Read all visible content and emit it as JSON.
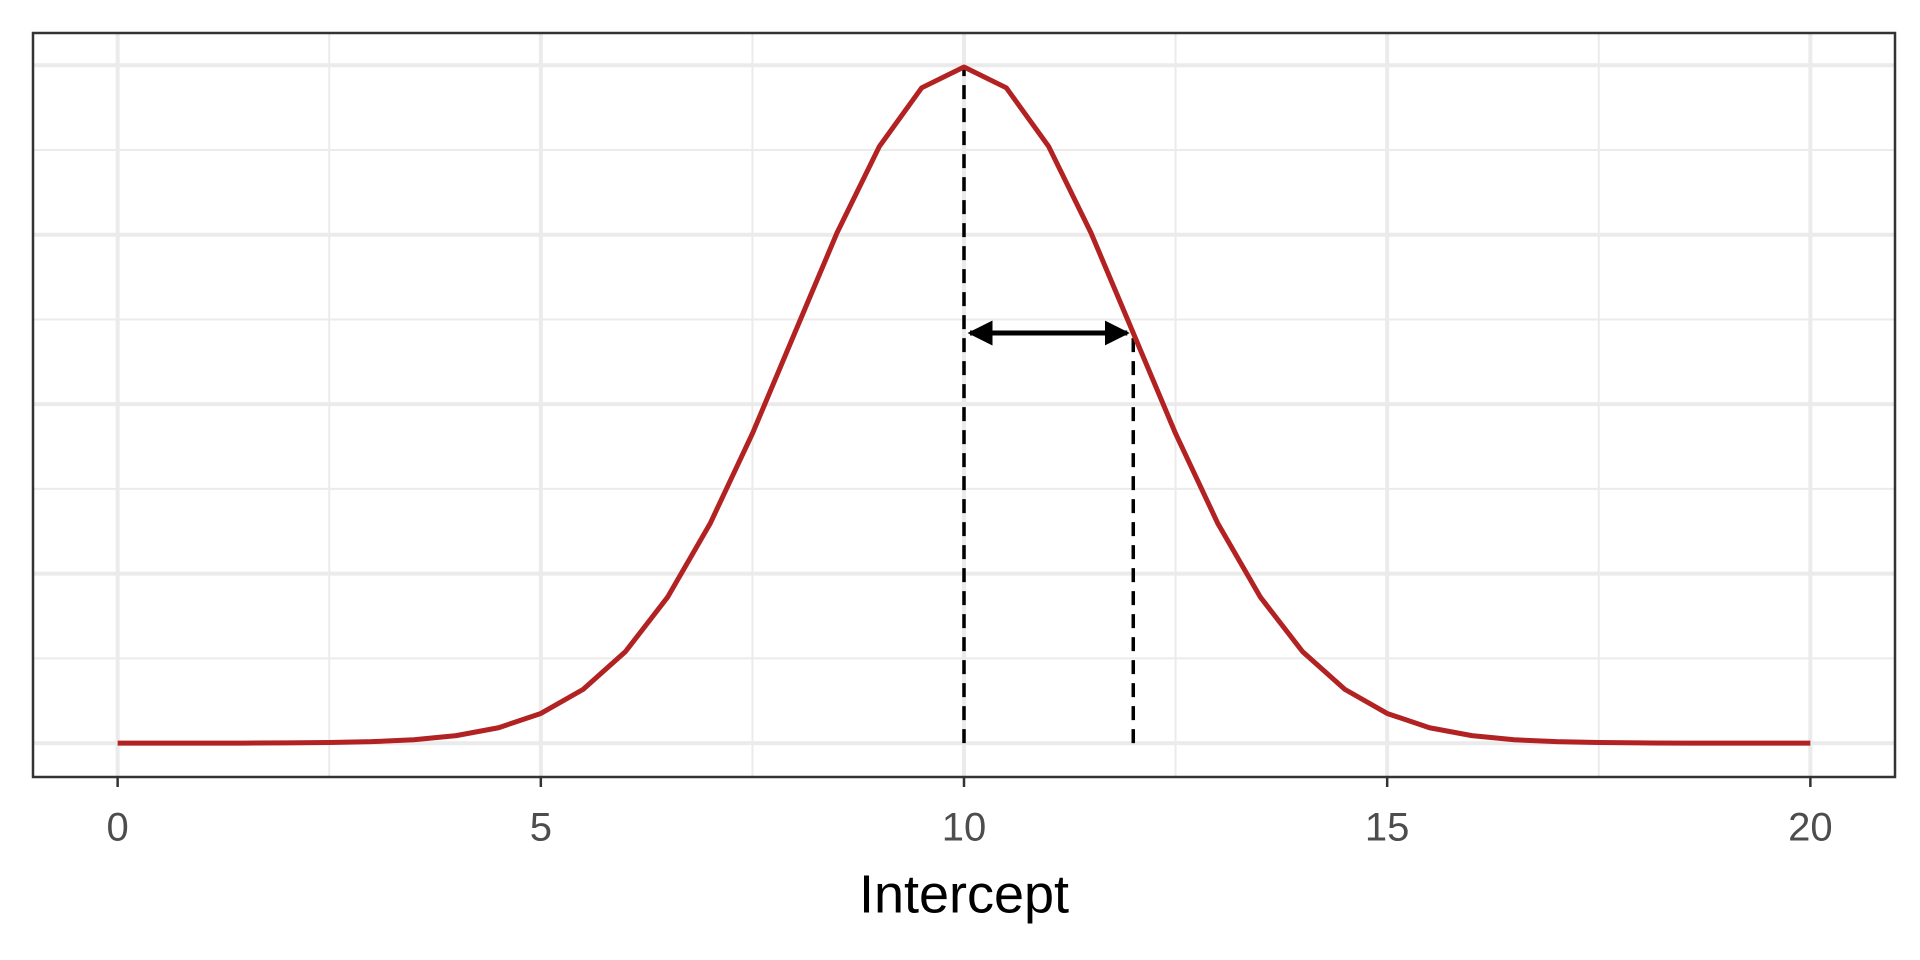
{
  "chart_data": {
    "type": "line",
    "xlabel": "Intercept",
    "color": "#b22222",
    "x": [
      0,
      0.5,
      1,
      1.5,
      2,
      2.5,
      3,
      3.5,
      4,
      4.5,
      5,
      5.5,
      6,
      6.5,
      7,
      7.5,
      8,
      8.5,
      9,
      9.5,
      10,
      10.5,
      11,
      11.5,
      12,
      12.5,
      13,
      13.5,
      14,
      14.5,
      15,
      15.5,
      16,
      16.5,
      17,
      17.5,
      18,
      18.5,
      19,
      19.5,
      20
    ],
    "values": [
      0,
      0,
      1e-05,
      2e-05,
      7e-05,
      0.00018,
      0.00044,
      0.00101,
      0.00222,
      0.00455,
      0.00876,
      0.01587,
      0.027,
      0.04314,
      0.06476,
      0.09132,
      0.12099,
      0.15057,
      0.17603,
      0.19333,
      0.19947,
      0.19333,
      0.17603,
      0.15057,
      0.12099,
      0.09132,
      0.06476,
      0.04314,
      0.027,
      0.01587,
      0.00876,
      0.00455,
      0.00222,
      0.00101,
      0.00044,
      0.00018,
      7e-05,
      2e-05,
      1e-05,
      0,
      0
    ],
    "xlim": [
      -1,
      21
    ],
    "xticks": [
      0,
      5,
      10,
      15,
      20
    ],
    "xminorticks": [
      2.5,
      7.5,
      12.5,
      17.5
    ],
    "ylim": [
      -0.00998,
      0.2095
    ],
    "yticks": [
      0,
      0.05,
      0.1,
      0.15,
      0.2
    ],
    "yminorticks": [
      0.025,
      0.075,
      0.125,
      0.175
    ],
    "grid": true,
    "reference_lines": [
      {
        "x": 10,
        "y": 0.19947
      },
      {
        "x": 12,
        "y": 0.12099
      }
    ],
    "arrow": {
      "x": [
        10,
        12
      ],
      "y": 0.12099
    }
  }
}
